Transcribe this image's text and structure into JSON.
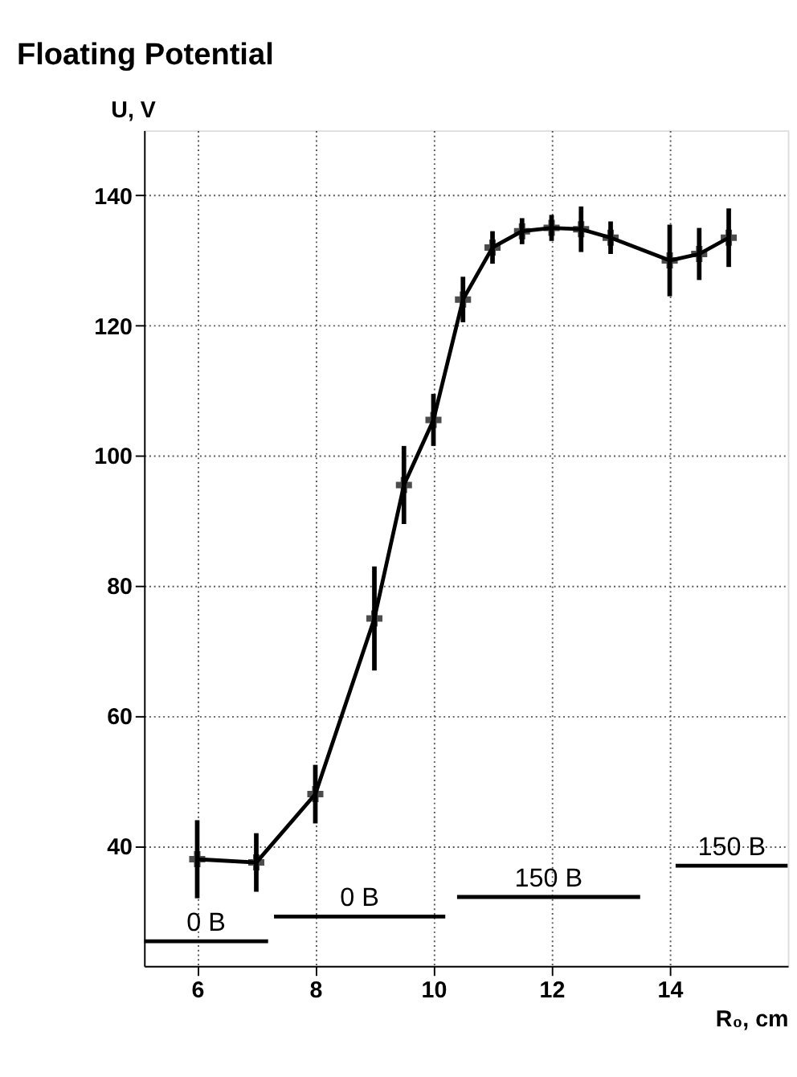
{
  "chart_data": {
    "type": "line",
    "title": "Floating Potential",
    "xlabel": "R₀, cm",
    "ylabel": "U, V",
    "xlim": [
      5.1,
      16
    ],
    "xticks": [
      6,
      8,
      10,
      12,
      14
    ],
    "ylim": [
      21.6,
      150
    ],
    "yticks": [
      40,
      60,
      80,
      100,
      120,
      140
    ],
    "grid": true,
    "marker": "cross",
    "line_style": "solid",
    "series": [
      {
        "color": "#000000",
        "x": [
          6,
          7,
          8,
          9,
          9.5,
          10,
          10.5,
          11,
          11.5,
          12,
          12.5,
          13,
          14,
          14.5,
          15
        ],
        "values": [
          38,
          37.5,
          48,
          75,
          95.5,
          105.5,
          124,
          132,
          134.5,
          135,
          134.8,
          133.5,
          130,
          131,
          133.5
        ],
        "errors": [
          6,
          4.5,
          4.5,
          8,
          6,
          4,
          3.5,
          2.5,
          2,
          2,
          3.5,
          2.5,
          5.5,
          4,
          4.5
        ]
      },
      {
        "name": "0 B",
        "type": "line",
        "marker": "none",
        "color": "#000000",
        "x": [
          5.1,
          7.2
        ],
        "values": [
          25.4,
          25.4
        ]
      },
      {
        "name": "0 B",
        "type": "line",
        "marker": "none",
        "color": "#000000",
        "x": [
          7.3,
          10.2
        ],
        "values": [
          29.2,
          29.2
        ]
      },
      {
        "name": "150 B",
        "type": "line",
        "marker": "none",
        "color": "#000000",
        "x": [
          10.4,
          13.5
        ],
        "values": [
          32.2,
          32.2
        ]
      },
      {
        "name": "150 B",
        "type": "line",
        "marker": "none",
        "color": "#000000",
        "x": [
          14.1,
          16
        ],
        "values": [
          37,
          37
        ]
      }
    ]
  }
}
